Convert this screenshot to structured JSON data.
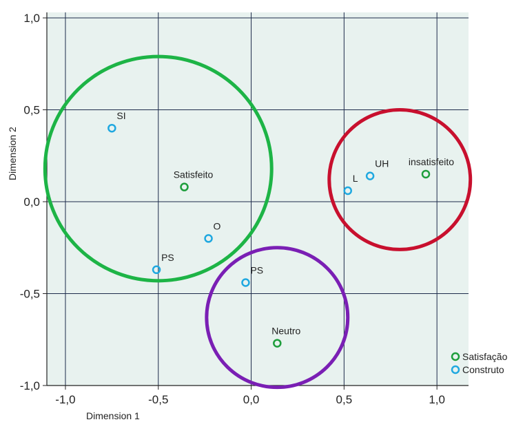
{
  "chart_data": {
    "type": "scatter",
    "title": "",
    "xlabel": "Dimension 1",
    "ylabel": "Dimension 2",
    "xlim": [
      -1.1,
      1.17
    ],
    "ylim": [
      -1.0,
      1.03
    ],
    "xticks": [
      "-1,0",
      "-0,5",
      "0,0",
      "0,5",
      "1,0"
    ],
    "xtick_values": [
      -1.0,
      -0.5,
      0.0,
      0.5,
      1.0
    ],
    "yticks": [
      "-1,0",
      "-0,5",
      "0,0",
      "0,5",
      "1,0"
    ],
    "ytick_values": [
      -1.0,
      -0.5,
      0.0,
      0.5,
      1.0
    ],
    "grid": true,
    "background_color": "#e8f2ef",
    "legend_position": "bottom-right",
    "series": [
      {
        "name": "Satisfação",
        "color": "#1e9e3c",
        "points": [
          {
            "label": "Satisfeito",
            "x": -0.36,
            "y": 0.08
          },
          {
            "label": "insatisfeito",
            "x": 0.94,
            "y": 0.15
          },
          {
            "label": "Neutro",
            "x": 0.14,
            "y": -0.77
          }
        ]
      },
      {
        "name": "Construto",
        "color": "#1fa8e0",
        "points": [
          {
            "label": "SI",
            "x": -0.75,
            "y": 0.4
          },
          {
            "label": "O",
            "x": -0.23,
            "y": -0.2
          },
          {
            "label": "PS",
            "x": -0.51,
            "y": -0.37
          },
          {
            "label": "PS",
            "x": -0.03,
            "y": -0.44
          },
          {
            "label": "L",
            "x": 0.52,
            "y": 0.06
          },
          {
            "label": "UH",
            "x": 0.64,
            "y": 0.14
          }
        ]
      }
    ],
    "circles": [
      {
        "cx": -0.5,
        "cy": 0.18,
        "r": 0.61,
        "color": "#1db446"
      },
      {
        "cx": 0.8,
        "cy": 0.12,
        "r": 0.38,
        "color": "#c8102e"
      },
      {
        "cx": 0.14,
        "cy": -0.63,
        "r": 0.38,
        "color": "#7a1fb4"
      }
    ]
  }
}
